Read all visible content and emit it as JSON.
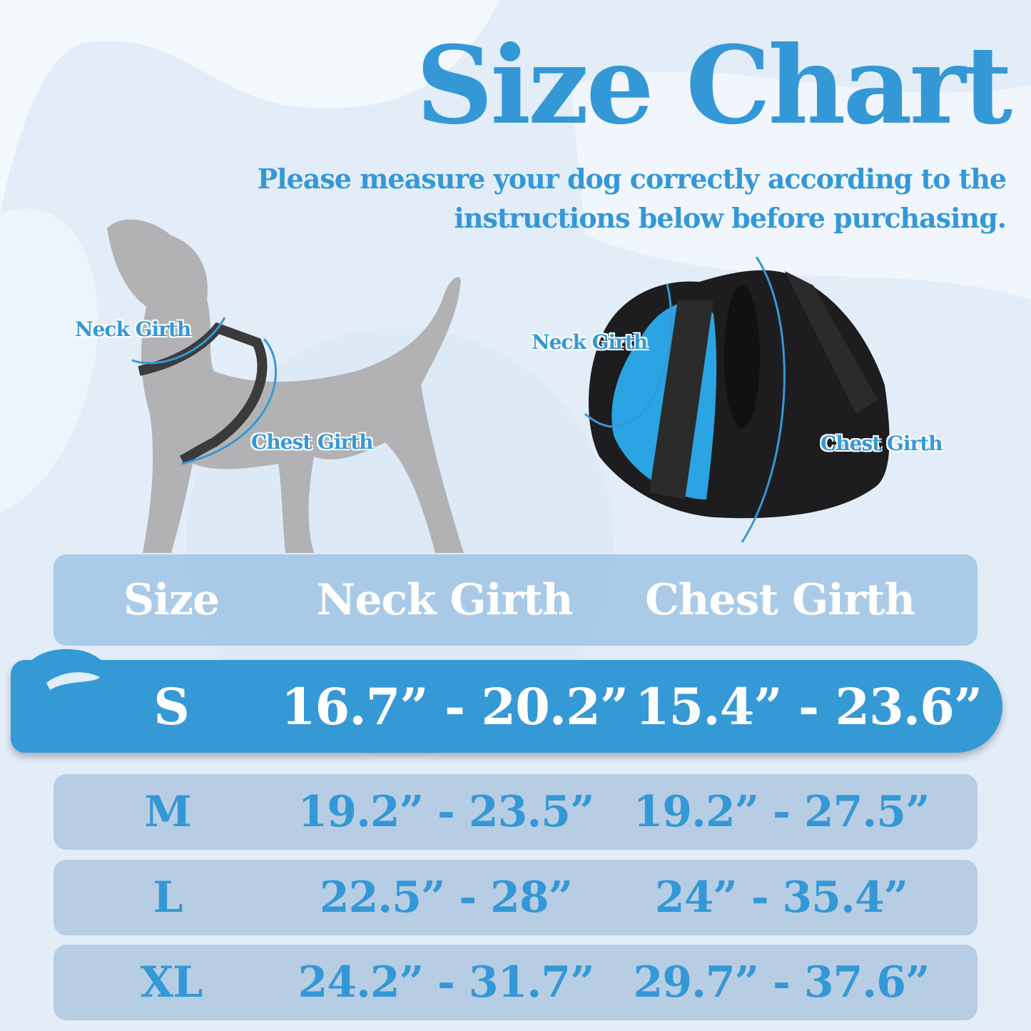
{
  "title": "Size Chart",
  "subtitle": [
    "Please measure your dog correctly according to the",
    "instructions below before purchasing."
  ],
  "dog_labels": {
    "neck": "Neck Girth",
    "chest": "Chest Girth"
  },
  "harness_labels": {
    "neck": "Neck Girth",
    "chest": "Chest Girth"
  },
  "colors": {
    "accent": "#3599d6",
    "row": "#b7cde4",
    "background": "#e2edf8"
  },
  "table": {
    "headers": [
      "Size",
      "Neck Girth",
      "Chest Girth"
    ],
    "rows": [
      {
        "size": "S",
        "neck": "16.7” - 20.2”",
        "chest": "15.4” - 23.6”",
        "highlighted": true
      },
      {
        "size": "M",
        "neck": "19.2” - 23.5”",
        "chest": "19.2” - 27.5”"
      },
      {
        "size": "L",
        "neck": "22.5” - 28”",
        "chest": "24” - 35.4”"
      },
      {
        "size": "XL",
        "neck": "24.2” - 31.7”",
        "chest": "29.7” - 37.6”"
      }
    ]
  }
}
